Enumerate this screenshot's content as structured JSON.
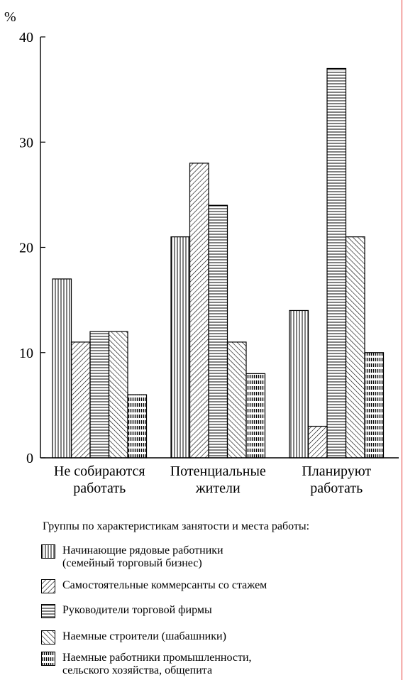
{
  "chart_data": {
    "type": "bar",
    "ylabel": "%",
    "ylim": [
      0,
      40
    ],
    "yticks": [
      0,
      10,
      20,
      30,
      40
    ],
    "grid": false,
    "legend_position": "bottom",
    "categories": [
      [
        "Не собираются",
        "работать"
      ],
      [
        "Потенциальные",
        "жители"
      ],
      [
        "Планируют",
        "работать"
      ]
    ],
    "series": [
      {
        "name": "Начинающие рядовые работники (семейный торговый бизнес)",
        "pattern": "vertical",
        "values": [
          17,
          21,
          14
        ]
      },
      {
        "name": "Самостоятельные коммерсанты со стажем",
        "pattern": "diag-back",
        "values": [
          11,
          28,
          3
        ]
      },
      {
        "name": "Руководители торговой фирмы",
        "pattern": "horizontal",
        "values": [
          12,
          24,
          37
        ]
      },
      {
        "name": "Наемные строители (шабашники)",
        "pattern": "diag-fwd",
        "values": [
          12,
          11,
          21
        ]
      },
      {
        "name": "Наемные работники промышленности, сельского хозяйства, общепита",
        "pattern": "dashed",
        "values": [
          6,
          8,
          10
        ]
      }
    ]
  },
  "legend": {
    "title": "Группы по  характеристикам занятости  и места работы:",
    "items": [
      {
        "label": "Начинающие рядовые работники\n(семейный торговый бизнес)",
        "pattern": "vertical"
      },
      {
        "label": "Самостоятельные коммерсанты со стажем",
        "pattern": "diag-back"
      },
      {
        "label": "Руководители торговой фирмы",
        "pattern": "horizontal"
      },
      {
        "label": "Наемные строители (шабашники)",
        "pattern": "diag-fwd"
      },
      {
        "label": "Наемные работники промышленности,\nсельского хозяйства, общепита",
        "pattern": "dashed"
      }
    ]
  },
  "colors": {
    "ink": "#000000",
    "edge_line": "#e53935",
    "background": "#ffffff"
  }
}
